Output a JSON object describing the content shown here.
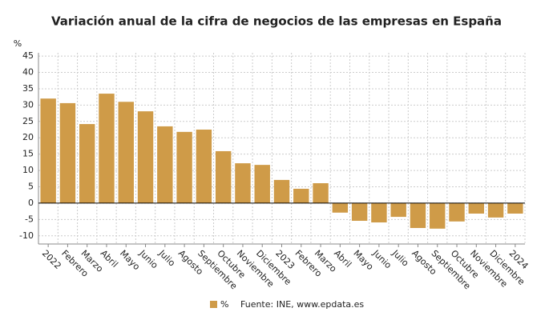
{
  "chart_data": {
    "type": "bar",
    "title": "Variación anual de la cifra de negocios de las empresas en España",
    "y_label": "%",
    "categories": [
      "2022",
      "Febrero",
      "Marzo",
      "Abril",
      "Mayo",
      "Junio",
      "Julio",
      "Agosto",
      "Septiembre",
      "Octubre",
      "Noviembre",
      "Diciembre",
      "2023",
      "Febrero",
      "Marzo",
      "Abril",
      "Mayo",
      "Junio",
      "Julio",
      "Agosto",
      "Septiembre",
      "Octubre",
      "Noviembre",
      "Diciembre",
      "2024"
    ],
    "series": [
      {
        "name": "%",
        "color": "#cf9b48",
        "values": [
          32.0,
          30.6,
          24.2,
          33.5,
          31.0,
          28.1,
          23.5,
          21.8,
          22.5,
          15.9,
          12.2,
          11.7,
          7.1,
          4.4,
          6.1,
          -2.9,
          -5.4,
          -5.9,
          -4.2,
          -7.6,
          -7.8,
          -5.6,
          -3.2,
          -4.4,
          -3.2
        ]
      }
    ],
    "ylim": [
      -12.5,
      46
    ],
    "yticks": [
      -10,
      -5,
      0,
      5,
      10,
      15,
      20,
      25,
      30,
      35,
      40,
      45
    ],
    "grid": true,
    "legend": "bottom",
    "source": "Fuente: INE, www.epdata.es"
  }
}
